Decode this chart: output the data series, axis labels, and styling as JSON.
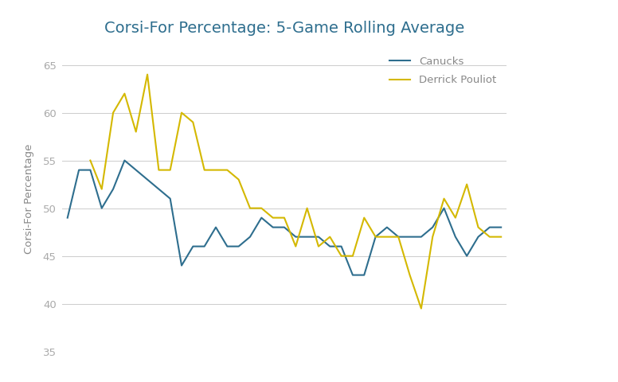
{
  "title": "Corsi-For Percentage: 5-Game Rolling Average",
  "ylabel": "Corsi-For Percentage",
  "canucks_color": "#2e6e8e",
  "pouliot_color": "#d4b800",
  "canucks_label": "Canucks",
  "pouliot_label": "Derrick Pouliot",
  "ylim": [
    35,
    67
  ],
  "yticks": [
    35,
    40,
    45,
    50,
    55,
    60,
    65
  ],
  "background_color": "#ffffff",
  "grid_color": "#cccccc",
  "title_color": "#2e6e8e",
  "canucks": [
    49,
    54,
    54,
    50,
    52,
    55,
    54,
    53,
    52,
    51,
    44,
    46,
    46,
    48,
    46,
    46,
    47,
    49,
    48,
    48,
    47,
    47,
    47,
    46,
    46,
    43,
    43,
    47,
    48,
    47,
    47,
    47,
    48,
    50,
    47,
    45,
    47,
    48,
    48
  ],
  "pouliot": [
    null,
    null,
    55,
    52,
    60,
    62,
    58,
    64,
    54,
    54,
    60,
    59,
    54,
    54,
    54,
    53,
    50,
    50,
    49,
    49,
    46,
    50,
    46,
    47,
    45,
    45,
    49,
    47,
    47,
    47,
    43,
    39.5,
    47,
    51,
    49,
    52.5,
    48,
    47,
    47
  ]
}
